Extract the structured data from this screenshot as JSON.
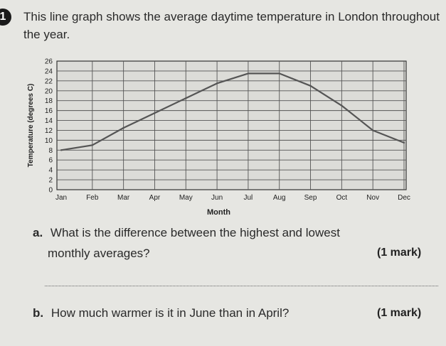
{
  "question": {
    "number": "1",
    "text": "This line graph shows the average daytime temperature in London throughout the year."
  },
  "chart_data": {
    "type": "line",
    "title": "",
    "xlabel": "Month",
    "ylabel": "Temperature (degrees C)",
    "categories": [
      "Jan",
      "Feb",
      "Mar",
      "Apr",
      "May",
      "Jun",
      "Jul",
      "Aug",
      "Sep",
      "Oct",
      "Nov",
      "Dec"
    ],
    "y_ticks": [
      "0",
      "2",
      "4",
      "6",
      "8",
      "10",
      "12",
      "14",
      "16",
      "18",
      "20",
      "22",
      "24",
      "26"
    ],
    "ylim": [
      0,
      26
    ],
    "series": [
      {
        "values": [
          8,
          9,
          12.5,
          15.5,
          18.5,
          21.5,
          23.5,
          23.5,
          21,
          17,
          12,
          9.5
        ]
      }
    ],
    "grid": true,
    "line_color": "#555555"
  },
  "part_a": {
    "label": "a.",
    "line1": "What is the difference between the highest and lowest",
    "line2": "monthly averages?",
    "marks": "(1 mark)"
  },
  "part_b": {
    "label": "b.",
    "text": "How much warmer is it in June than in April?",
    "marks": "(1 mark)"
  }
}
